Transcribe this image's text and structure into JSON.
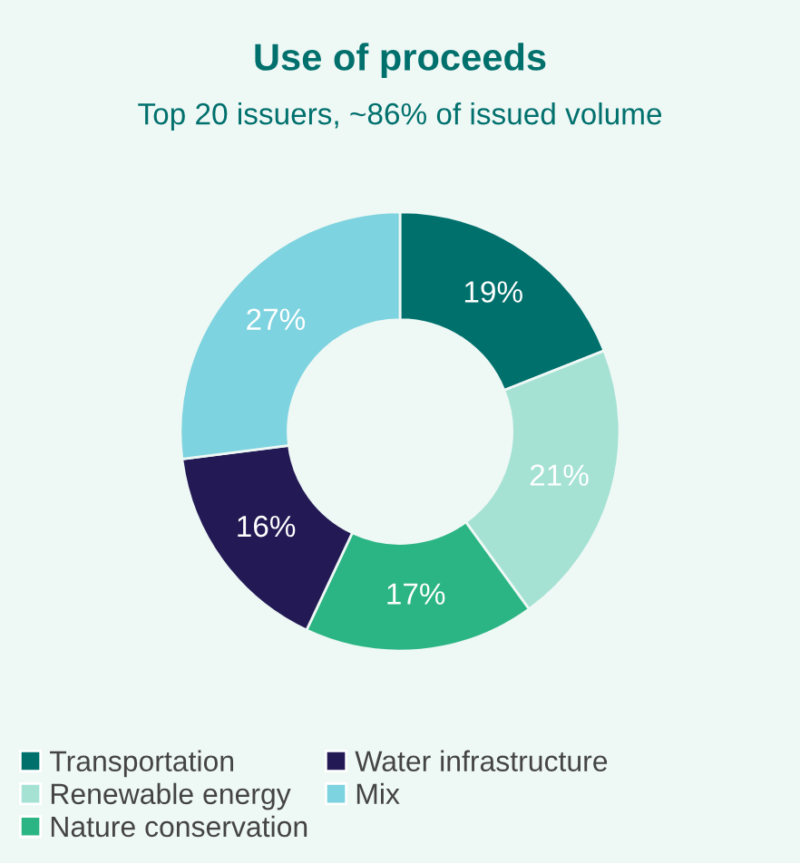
{
  "chart_data": {
    "type": "donut",
    "title": "Use of proceeds",
    "subtitle": "Top 20 issuers, ~86% of issued volume",
    "categories": [
      "Transportation",
      "Renewable energy",
      "Nature conservation",
      "Water infrastructure",
      "Mix"
    ],
    "values": [
      19,
      21,
      17,
      16,
      27
    ],
    "colors": [
      "#00706c",
      "#a5e2d4",
      "#2bb584",
      "#231a55",
      "#7dd3df"
    ],
    "value_labels": [
      "19%",
      "21%",
      "17%",
      "16%",
      "27%"
    ],
    "legend": "bottom"
  }
}
